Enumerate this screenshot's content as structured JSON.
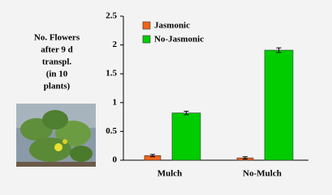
{
  "chart_data": {
    "type": "bar",
    "ylabel": [
      "No. Flowers",
      "after 9 d",
      "transpl.",
      "(in 10",
      "plants)"
    ],
    "categories": [
      "Mulch",
      "No-Mulch"
    ],
    "series": [
      {
        "name": "Jasmonic",
        "color": "#f06418",
        "values": [
          0.08,
          0.04
        ],
        "errors": [
          0.02,
          0.02
        ]
      },
      {
        "name": "No-Jasmonic",
        "color": "#00cc00",
        "values": [
          0.82,
          1.91
        ],
        "errors": [
          0.03,
          0.04
        ]
      }
    ],
    "ylim": [
      0,
      2.5
    ],
    "yticks": [
      0,
      0.5,
      1,
      1.5,
      2,
      2.5
    ],
    "grid": false,
    "legend": "top-left"
  }
}
